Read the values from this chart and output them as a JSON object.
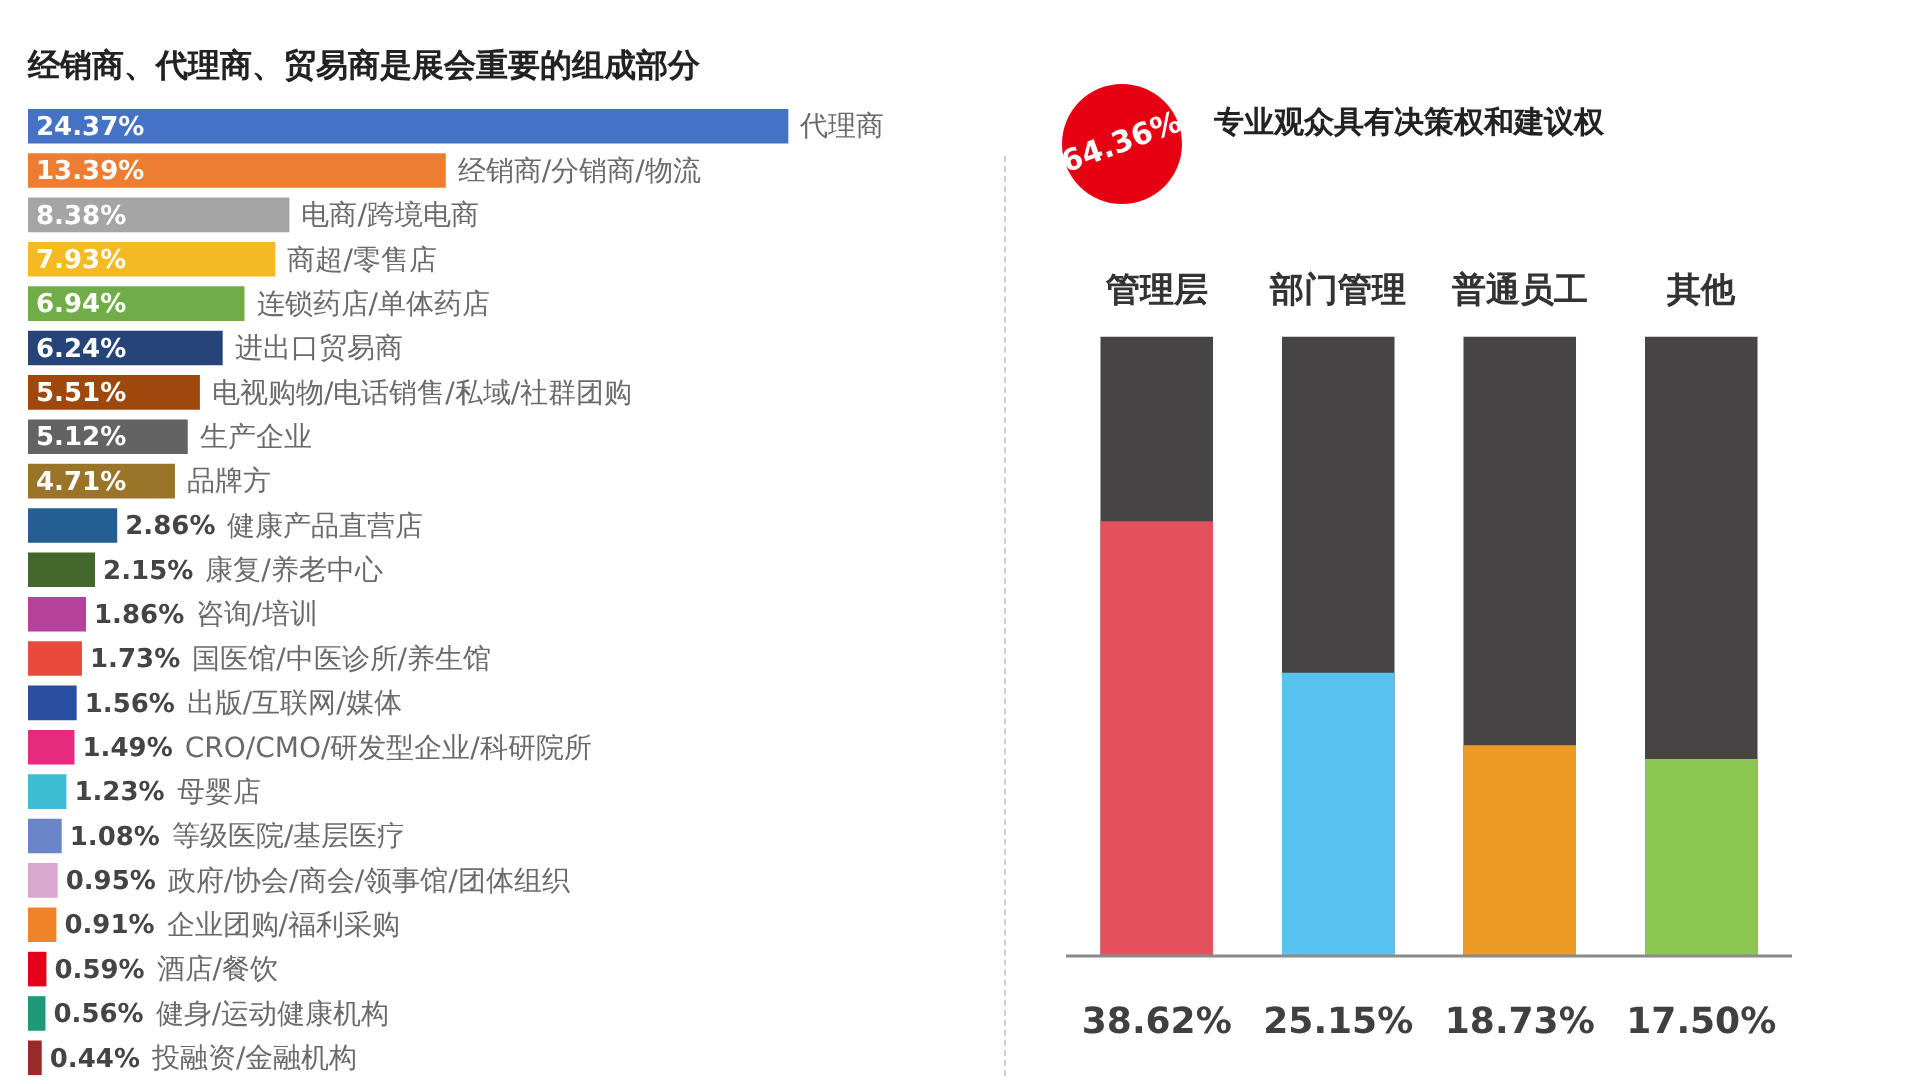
{
  "chart_data": [
    {
      "type": "bar",
      "orientation": "horizontal",
      "title": "经销商、代理商、贸易商是展会重要的组成部分",
      "categories": [
        "代理商",
        "经销商/分销商/物流",
        "电商/跨境电商",
        "商超/零售店",
        "连锁药店/单体药店",
        "进出口贸易商",
        "电视购物/电话销售/私域/社群团购",
        "生产企业",
        "品牌方",
        "健康产品直营店",
        "康复/养老中心",
        "咨询/培训",
        "国医馆/中医诊所/养生馆",
        "出版/互联网/媒体",
        "CRO/CMO/研发型企业/科研院所",
        "母婴店",
        "等级医院/基层医疗",
        "政府/协会/商会/领事馆/团体组织",
        "企业团购/福利采购",
        "酒店/餐饮",
        "健身/运动健康机构",
        "投融资/金融机构"
      ],
      "values": [
        24.37,
        13.39,
        8.38,
        7.93,
        6.94,
        6.24,
        5.51,
        5.12,
        4.71,
        2.86,
        2.15,
        1.86,
        1.73,
        1.56,
        1.49,
        1.23,
        1.08,
        0.95,
        0.91,
        0.59,
        0.56,
        0.44
      ],
      "colors": [
        "#4472c4",
        "#ed7d31",
        "#a5a5a5",
        "#f5b921",
        "#70ad47",
        "#264478",
        "#9e480e",
        "#636363",
        "#9a7428",
        "#255e91",
        "#43682b",
        "#b6419b",
        "#e84a3c",
        "#2a4ea0",
        "#e62a7d",
        "#3bbcd0",
        "#6a86c8",
        "#d8a8d0",
        "#f0822a",
        "#e3001b",
        "#1f9a78",
        "#9a2a2a"
      ],
      "value_labels": [
        "24.37%",
        "13.39%",
        "8.38%",
        "7.93%",
        "6.94%",
        "6.24%",
        "5.51%",
        "5.12%",
        "4.71%",
        "2.86%",
        "2.15%",
        "1.86%",
        "1.73%",
        "1.56%",
        "1.49%",
        "1.23%",
        "1.08%",
        "0.95%",
        "0.91%",
        "0.59%",
        "0.56%",
        "0.44%"
      ],
      "tick_labels": "y"
    },
    {
      "type": "bar",
      "title": "专业观众具有决策权和建议权",
      "annotations": [
        "64.36%"
      ],
      "categories": [
        "管理层",
        "部门管理",
        "普通员工",
        "其他"
      ],
      "values": [
        38.62,
        25.15,
        18.73,
        17.5
      ],
      "colors": [
        "#e5505f",
        "#58c3f0",
        "#eb9a24",
        "#8cc850"
      ],
      "value_labels": [
        "38.62%",
        "25.15%",
        "18.73%",
        "17.50%"
      ],
      "ylim": [
        0,
        55
      ],
      "tick_labels": "x"
    }
  ]
}
